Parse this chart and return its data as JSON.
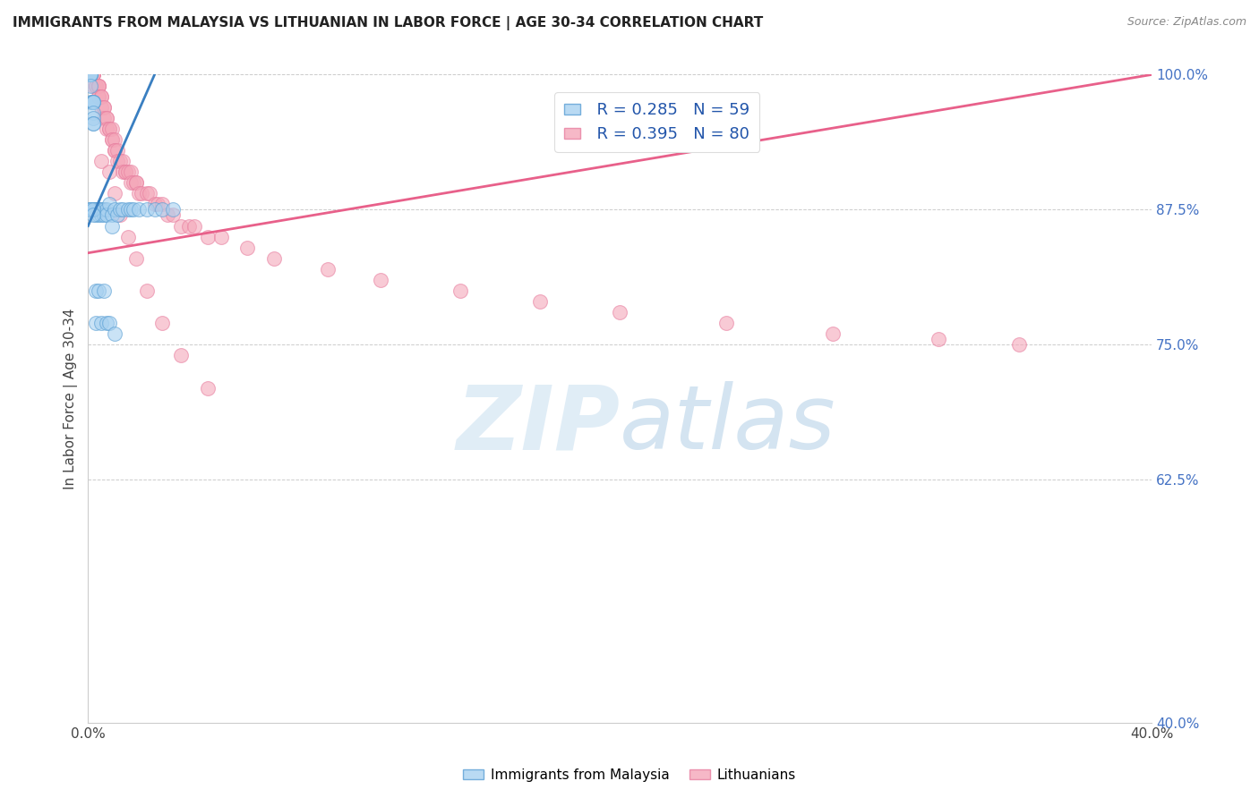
{
  "title": "IMMIGRANTS FROM MALAYSIA VS LITHUANIAN IN LABOR FORCE | AGE 30-34 CORRELATION CHART",
  "source": "Source: ZipAtlas.com",
  "ylabel": "In Labor Force | Age 30-34",
  "xlim": [
    0.0,
    0.4
  ],
  "ylim": [
    0.4,
    1.0
  ],
  "xticks": [
    0.0,
    0.05,
    0.1,
    0.15,
    0.2,
    0.25,
    0.3,
    0.35,
    0.4
  ],
  "xticklabels": [
    "0.0%",
    "",
    "",
    "",
    "",
    "",
    "",
    "",
    "40.0%"
  ],
  "yticks": [
    0.4,
    0.625,
    0.75,
    0.875,
    1.0
  ],
  "yticklabels": [
    "40.0%",
    "62.5%",
    "75.0%",
    "87.5%",
    "100.0%"
  ],
  "blue_color": "#a8d1f0",
  "pink_color": "#f4a7b9",
  "blue_edge_color": "#5a9fd4",
  "pink_edge_color": "#e87fa0",
  "blue_line_color": "#3a7fc1",
  "pink_line_color": "#e8608a",
  "legend_label_blue": "Immigrants from Malaysia",
  "legend_label_pink": "Lithuanians",
  "blue_x": [
    0.0005,
    0.001,
    0.001,
    0.001,
    0.001,
    0.001,
    0.001,
    0.0015,
    0.002,
    0.002,
    0.002,
    0.002,
    0.002,
    0.002,
    0.002,
    0.002,
    0.003,
    0.003,
    0.003,
    0.003,
    0.003,
    0.004,
    0.004,
    0.004,
    0.005,
    0.005,
    0.005,
    0.006,
    0.006,
    0.007,
    0.007,
    0.008,
    0.009,
    0.009,
    0.01,
    0.011,
    0.012,
    0.013,
    0.015,
    0.016,
    0.017,
    0.019,
    0.022,
    0.025,
    0.028,
    0.032,
    0.0005,
    0.001,
    0.001,
    0.002,
    0.002,
    0.003,
    0.003,
    0.004,
    0.005,
    0.006,
    0.007,
    0.008,
    0.01
  ],
  "blue_y": [
    1.0,
    1.0,
    1.0,
    1.0,
    1.0,
    0.99,
    0.975,
    0.975,
    0.975,
    0.975,
    0.975,
    0.965,
    0.96,
    0.955,
    0.955,
    0.875,
    0.875,
    0.875,
    0.875,
    0.875,
    0.87,
    0.875,
    0.875,
    0.87,
    0.875,
    0.875,
    0.87,
    0.875,
    0.87,
    0.875,
    0.87,
    0.88,
    0.87,
    0.86,
    0.875,
    0.87,
    0.875,
    0.875,
    0.875,
    0.875,
    0.875,
    0.875,
    0.875,
    0.875,
    0.875,
    0.875,
    0.875,
    0.875,
    0.875,
    0.875,
    0.87,
    0.8,
    0.77,
    0.8,
    0.77,
    0.8,
    0.77,
    0.77,
    0.76
  ],
  "pink_x": [
    0.001,
    0.001,
    0.001,
    0.002,
    0.002,
    0.002,
    0.002,
    0.002,
    0.003,
    0.003,
    0.004,
    0.004,
    0.004,
    0.004,
    0.004,
    0.005,
    0.005,
    0.005,
    0.006,
    0.006,
    0.006,
    0.007,
    0.007,
    0.007,
    0.008,
    0.008,
    0.009,
    0.009,
    0.009,
    0.01,
    0.01,
    0.01,
    0.011,
    0.011,
    0.012,
    0.013,
    0.013,
    0.014,
    0.014,
    0.015,
    0.016,
    0.016,
    0.017,
    0.018,
    0.018,
    0.019,
    0.02,
    0.022,
    0.023,
    0.025,
    0.026,
    0.028,
    0.03,
    0.032,
    0.035,
    0.038,
    0.04,
    0.045,
    0.05,
    0.06,
    0.07,
    0.09,
    0.11,
    0.14,
    0.17,
    0.2,
    0.24,
    0.28,
    0.32,
    0.35,
    0.005,
    0.008,
    0.01,
    0.012,
    0.015,
    0.018,
    0.022,
    0.028,
    0.035,
    0.045
  ],
  "pink_y": [
    1.0,
    1.0,
    1.0,
    1.0,
    1.0,
    1.0,
    1.0,
    0.99,
    0.99,
    0.99,
    0.99,
    0.99,
    0.99,
    0.98,
    0.98,
    0.98,
    0.98,
    0.97,
    0.97,
    0.97,
    0.96,
    0.96,
    0.96,
    0.95,
    0.95,
    0.95,
    0.95,
    0.94,
    0.94,
    0.94,
    0.93,
    0.93,
    0.93,
    0.92,
    0.92,
    0.92,
    0.91,
    0.91,
    0.91,
    0.91,
    0.91,
    0.9,
    0.9,
    0.9,
    0.9,
    0.89,
    0.89,
    0.89,
    0.89,
    0.88,
    0.88,
    0.88,
    0.87,
    0.87,
    0.86,
    0.86,
    0.86,
    0.85,
    0.85,
    0.84,
    0.83,
    0.82,
    0.81,
    0.8,
    0.79,
    0.78,
    0.77,
    0.76,
    0.755,
    0.75,
    0.92,
    0.91,
    0.89,
    0.87,
    0.85,
    0.83,
    0.8,
    0.77,
    0.74,
    0.71
  ],
  "blue_line_x0": 0.0,
  "blue_line_y0": 0.86,
  "blue_line_x1": 0.025,
  "blue_line_y1": 1.0,
  "pink_line_x0": 0.0,
  "pink_line_y0": 0.835,
  "pink_line_x1": 0.4,
  "pink_line_y1": 1.0
}
